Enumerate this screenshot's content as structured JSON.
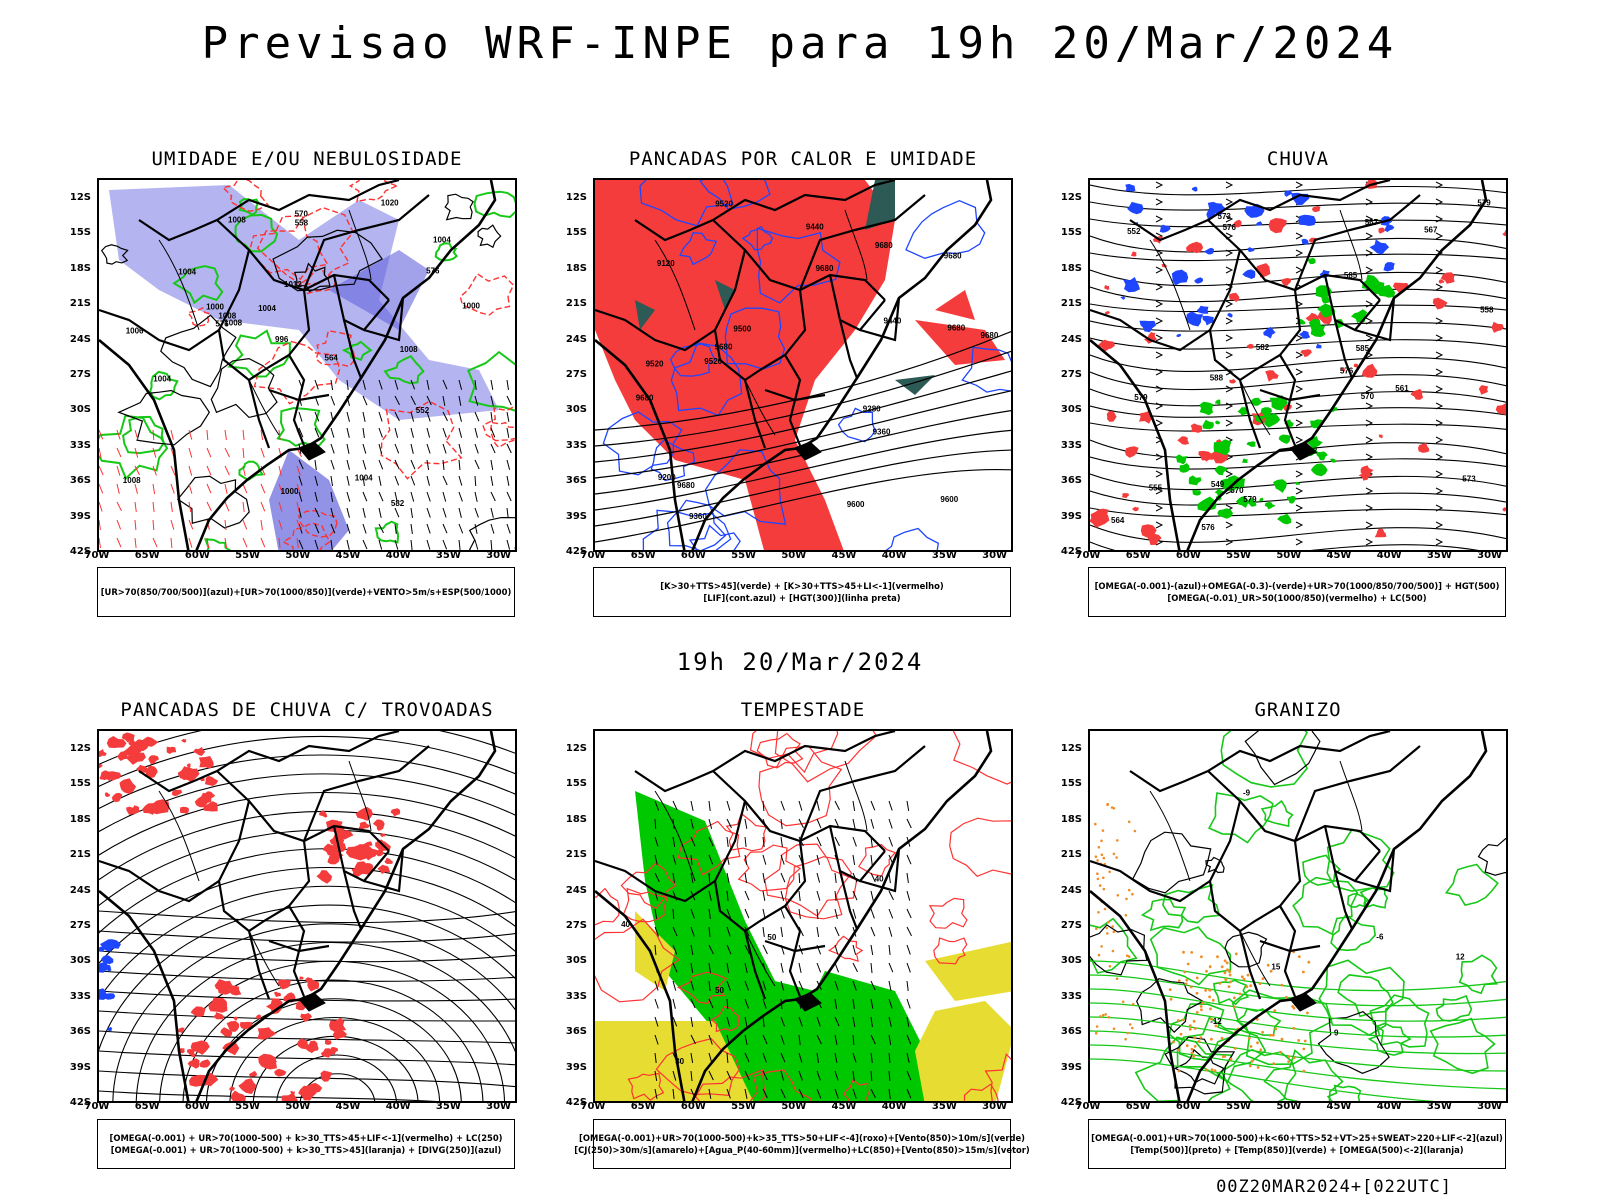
{
  "title": "Previsao WRF-INPE  para 19h 20/Mar/2024",
  "middle_title": "19h 20/Mar/2024",
  "footer": "00Z20MAR2024+[022UTC]",
  "colors": {
    "blue_shade": "#b4b4f0",
    "blue_dark": "#6464dc",
    "green_line": "#18c818",
    "red_line": "#ff3232",
    "red_fill": "#f53c3c",
    "blue_line": "#1e46ff",
    "teal_fill": "#2d5a55",
    "green_fill": "#00c800",
    "yellow_fill": "#e6dc32",
    "orange": "#f08c28"
  },
  "axes": {
    "lat_ticks": [
      "12S",
      "15S",
      "18S",
      "21S",
      "24S",
      "27S",
      "30S",
      "33S",
      "36S",
      "39S",
      "42S"
    ],
    "lon_ticks": [
      "70W",
      "65W",
      "60W",
      "55W",
      "50W",
      "45W",
      "40W",
      "35W",
      "30W"
    ]
  },
  "panels": [
    {
      "title": "UMIDADE E/OU NEBULOSIDADE",
      "legend": [
        "[UR>70(850/700/500)](azul)+[UR>70(1000/850)](verde)+VENTO>5m/s+ESP(500/1000)"
      ],
      "contour_labels": [
        "1008",
        "1008",
        "1006",
        "1012",
        "1004",
        "1004",
        "1008",
        "1004",
        "1008",
        "1000",
        "1004",
        "996",
        "1008",
        "1000",
        "1000",
        "1004",
        "1020",
        "582",
        "576",
        "576",
        "570",
        "564",
        "558",
        "552"
      ]
    },
    {
      "title": "PANCADAS POR CALOR E UMIDADE",
      "legend": [
        "[K>30+TTS>45](verde) + [K>30+TTS>45+LI<-1](vermelho)",
        "[LIF](cont.azul) + [HGT(300)](linha preta)"
      ],
      "contour_labels": [
        "9680",
        "9680",
        "9680",
        "9680",
        "9680",
        "9600",
        "9520",
        "9680",
        "9680",
        "9680",
        "9500",
        "9520",
        "9600",
        "9440",
        "9520",
        "9360",
        "9280",
        "9200",
        "9120",
        "9440",
        "9360"
      ]
    },
    {
      "title": "CHUVA",
      "legend": [
        "[OMEGA(-0.001)-(azul)+OMEGA(-0.3)-(verde)+UR>70(1000/850/700/500)] + HGT(500)",
        "[OMEGA(-0.01)_UR>50(1000/850)(vermelho) + LC(500)"
      ],
      "contour_labels": [
        "588",
        "585",
        "579",
        "576",
        "582",
        "579",
        "576",
        "573",
        "570",
        "567",
        "564",
        "561",
        "558",
        "555",
        "552",
        "549",
        "585",
        "582",
        "579",
        "576",
        "573",
        "570",
        "567"
      ]
    },
    {
      "title": "PANCADAS DE CHUVA C/ TROVOADAS",
      "legend": [
        "[OMEGA(-0.001) + UR>70(1000-500) + k>30_TTS>45+LIF<-1](vermelho) + LC(250)",
        "[OMEGA(-0.001) + UR>70(1000-500) + k>30_TTS>45](laranja) + [DIVG(250)](azul)"
      ],
      "contour_labels": []
    },
    {
      "title": "TEMPESTADE",
      "legend": [
        "[OMEGA(-0.001)+UR>70(1000-500)+k>35_TTS>50+LIF<-4](roxo)+[Vento(850)>10m/s](verde)",
        "[CJ(250)>30m/s](amarelo)+[Agua_P(40-60mm)](vermelho)+LC(850)+[Vento(850)>15m/s](vetor)"
      ],
      "contour_labels": [
        "50",
        "40",
        "40",
        "30",
        "50"
      ]
    },
    {
      "title": "GRANIZO",
      "legend": [
        "[OMEGA(-0.001)+UR>70(1000-500)+k<60+TTS>52+VT>25+SWEAT>220+LIF<-2](azul)",
        "[Temp(500)](preto) + [Temp(850)](verde) + [OMEGA(500)<-2](laranja)"
      ],
      "contour_labels": [
        "-12",
        "-6",
        "-9",
        "9",
        "12",
        "15"
      ]
    }
  ]
}
